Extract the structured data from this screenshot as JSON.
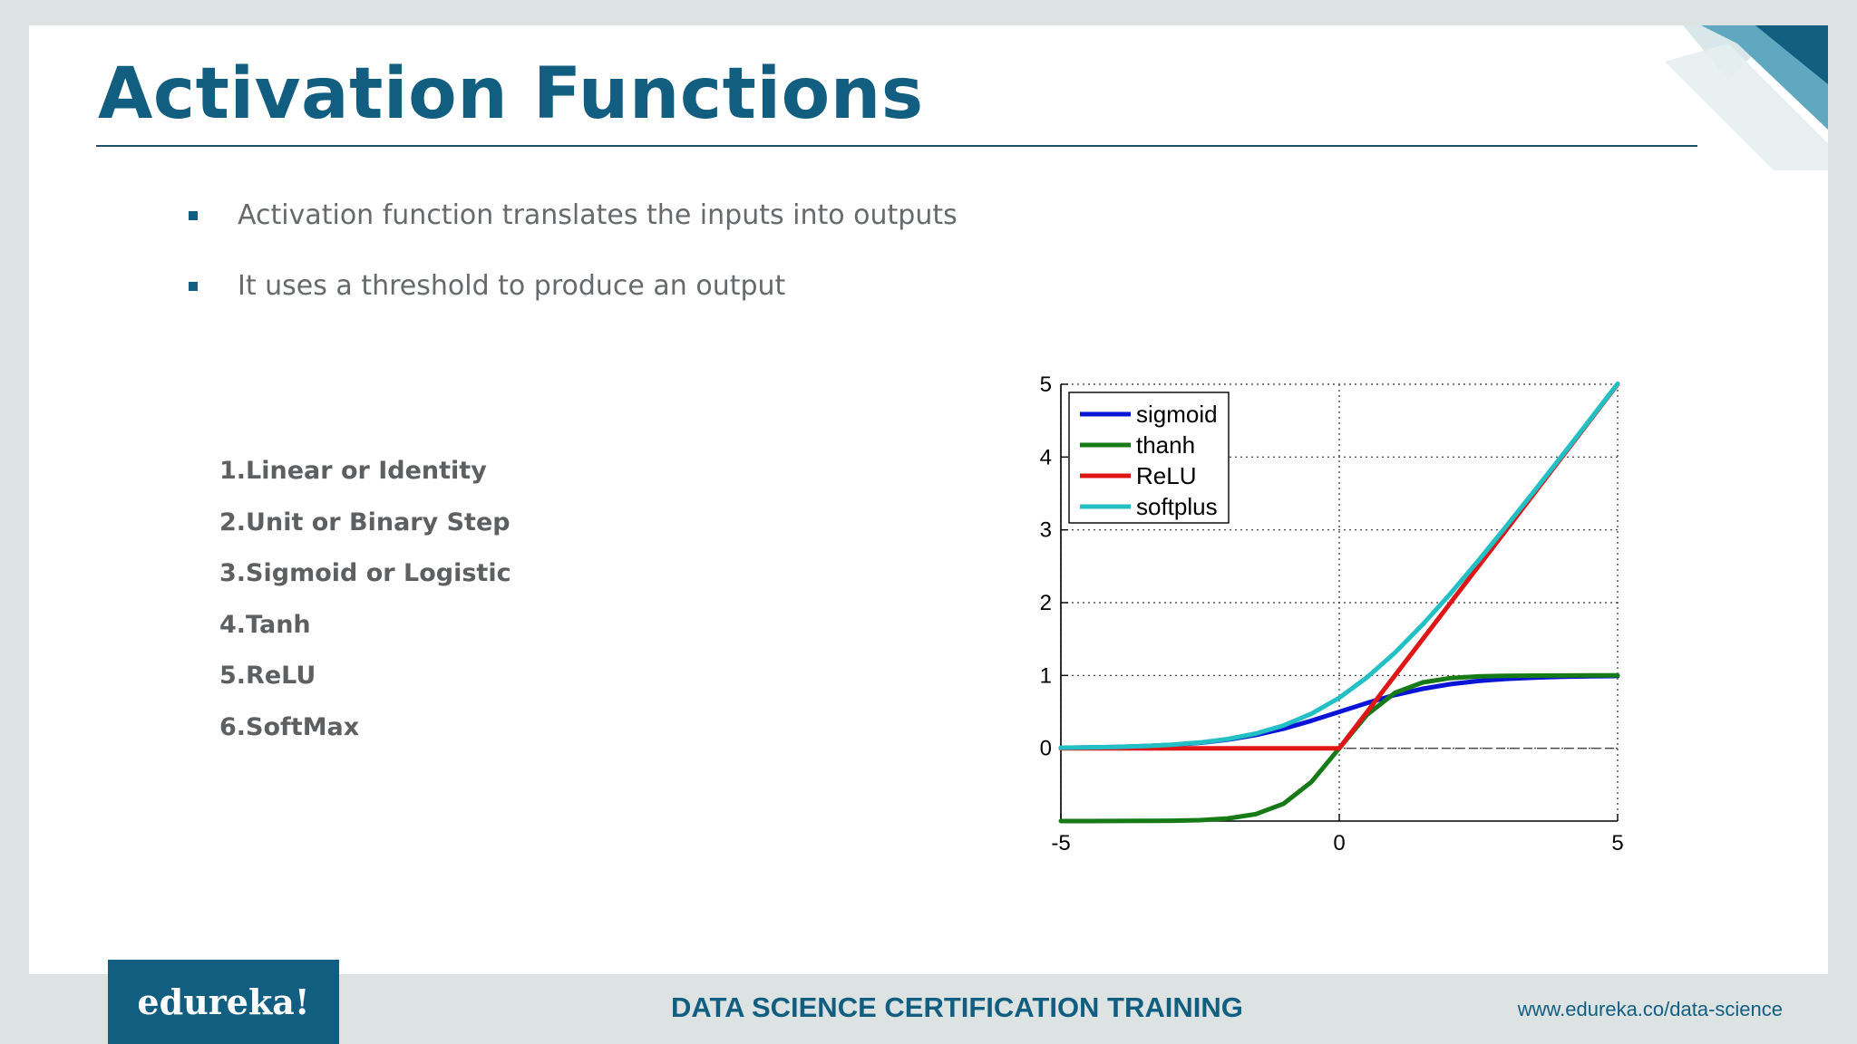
{
  "slide": {
    "title": "Activation Functions",
    "bullets": [
      "Activation function translates the inputs into outputs",
      "It uses a threshold to produce an output"
    ],
    "functions": [
      "1.Linear or Identity",
      "2.Unit or Binary Step",
      "3.Sigmoid or Logistic",
      "4.Tanh",
      "5.ReLU",
      "6.SoftMax"
    ]
  },
  "footer": {
    "logo": "edureka!",
    "center": "DATA SCIENCE CERTIFICATION TRAINING",
    "url": "www.edureka.co/data-science"
  },
  "colors": {
    "brand": "#115e80",
    "sigmoid": "#0a14d6",
    "tanh": "#167a16",
    "relu": "#e01515",
    "softplus": "#22c0c4"
  },
  "chart_data": {
    "type": "line",
    "title": "",
    "xlabel": "",
    "ylabel": "",
    "xlim": [
      -5,
      5
    ],
    "ylim": [
      -1,
      5
    ],
    "x_ticks": [
      "-5",
      "0",
      "5"
    ],
    "y_ticks": [
      "0",
      "1",
      "2",
      "3",
      "4",
      "5"
    ],
    "grid": true,
    "legend_position": "top-left",
    "x": [
      -5,
      -4.5,
      -4,
      -3.5,
      -3,
      -2.5,
      -2,
      -1.5,
      -1,
      -0.5,
      0,
      0.5,
      1,
      1.5,
      2,
      2.5,
      3,
      3.5,
      4,
      4.5,
      5
    ],
    "series": [
      {
        "name": "sigmoid",
        "color": "#0a14d6",
        "values": [
          0.007,
          0.011,
          0.018,
          0.029,
          0.047,
          0.076,
          0.119,
          0.182,
          0.269,
          0.378,
          0.5,
          0.622,
          0.731,
          0.818,
          0.881,
          0.924,
          0.953,
          0.971,
          0.982,
          0.989,
          0.993
        ]
      },
      {
        "name": "thanh",
        "color": "#167a16",
        "values": [
          -1.0,
          -1.0,
          -0.999,
          -0.998,
          -0.995,
          -0.987,
          -0.964,
          -0.905,
          -0.762,
          -0.462,
          0.0,
          0.462,
          0.762,
          0.905,
          0.964,
          0.987,
          0.995,
          0.998,
          0.999,
          1.0,
          1.0
        ]
      },
      {
        "name": "ReLU",
        "color": "#e01515",
        "values": [
          0,
          0,
          0,
          0,
          0,
          0,
          0,
          0,
          0,
          0,
          0,
          0.5,
          1,
          1.5,
          2,
          2.5,
          3,
          3.5,
          4,
          4.5,
          5
        ]
      },
      {
        "name": "softplus",
        "color": "#22c0c4",
        "values": [
          0.007,
          0.011,
          0.018,
          0.03,
          0.049,
          0.079,
          0.127,
          0.201,
          0.313,
          0.474,
          0.693,
          0.974,
          1.313,
          1.701,
          2.127,
          2.579,
          3.049,
          3.53,
          4.018,
          4.511,
          5.007
        ]
      }
    ]
  }
}
